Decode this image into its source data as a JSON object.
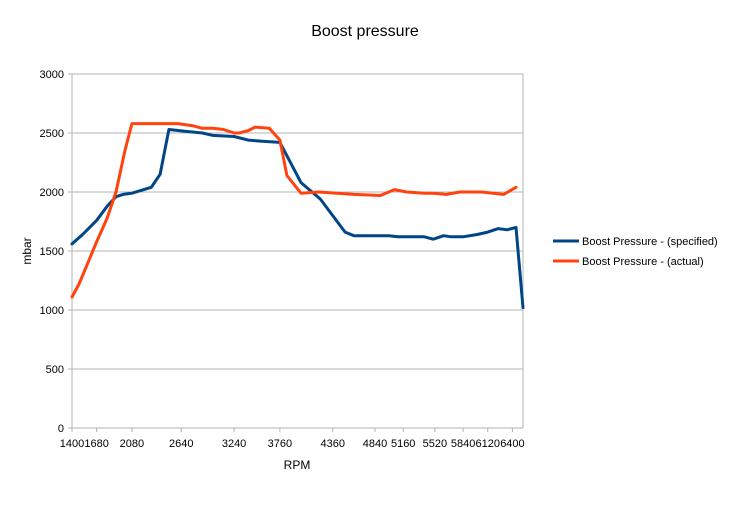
{
  "chart_data": {
    "type": "line",
    "title": "Boost pressure",
    "xlabel": "RPM",
    "ylabel": "mbar",
    "ylim": [
      0,
      3000
    ],
    "yticks": [
      0,
      500,
      1000,
      1500,
      2000,
      2500,
      3000
    ],
    "xlim": [
      1400,
      6520
    ],
    "xticks": [
      1400,
      1680,
      2080,
      2640,
      3240,
      3760,
      4360,
      4840,
      5160,
      5520,
      5840,
      6120,
      6400
    ],
    "grid": "horizontal",
    "legend_position": "right",
    "series": [
      {
        "name": "Boost Pressure - (specified)",
        "color": "#004586",
        "points": [
          [
            1400,
            1560
          ],
          [
            1520,
            1640
          ],
          [
            1680,
            1760
          ],
          [
            1800,
            1880
          ],
          [
            1900,
            1960
          ],
          [
            1980,
            1980
          ],
          [
            2080,
            1990
          ],
          [
            2300,
            2040
          ],
          [
            2400,
            2150
          ],
          [
            2500,
            2530
          ],
          [
            2680,
            2515
          ],
          [
            2880,
            2500
          ],
          [
            3000,
            2480
          ],
          [
            3240,
            2470
          ],
          [
            3400,
            2440
          ],
          [
            3560,
            2430
          ],
          [
            3760,
            2420
          ],
          [
            4000,
            2080
          ],
          [
            4220,
            1940
          ],
          [
            4500,
            1660
          ],
          [
            4600,
            1630
          ],
          [
            4840,
            1630
          ],
          [
            5000,
            1630
          ],
          [
            5100,
            1620
          ],
          [
            5400,
            1620
          ],
          [
            5500,
            1600
          ],
          [
            5620,
            1630
          ],
          [
            5700,
            1620
          ],
          [
            5840,
            1620
          ],
          [
            6000,
            1640
          ],
          [
            6120,
            1660
          ],
          [
            6240,
            1690
          ],
          [
            6340,
            1680
          ],
          [
            6440,
            1700
          ],
          [
            6520,
            1020
          ]
        ]
      },
      {
        "name": "Boost Pressure - (actual)",
        "color": "#ff420e",
        "points": [
          [
            1400,
            1110
          ],
          [
            1480,
            1220
          ],
          [
            1580,
            1400
          ],
          [
            1680,
            1580
          ],
          [
            1800,
            1780
          ],
          [
            1900,
            2000
          ],
          [
            2000,
            2350
          ],
          [
            2080,
            2580
          ],
          [
            2300,
            2580
          ],
          [
            2600,
            2580
          ],
          [
            2780,
            2560
          ],
          [
            2880,
            2540
          ],
          [
            3000,
            2540
          ],
          [
            3120,
            2530
          ],
          [
            3240,
            2500
          ],
          [
            3300,
            2500
          ],
          [
            3400,
            2520
          ],
          [
            3480,
            2550
          ],
          [
            3640,
            2540
          ],
          [
            3760,
            2440
          ],
          [
            3840,
            2140
          ],
          [
            4000,
            1990
          ],
          [
            4200,
            2000
          ],
          [
            4600,
            1980
          ],
          [
            4900,
            1970
          ],
          [
            5060,
            2020
          ],
          [
            5200,
            2000
          ],
          [
            5400,
            1990
          ],
          [
            5500,
            1990
          ],
          [
            5650,
            1980
          ],
          [
            5800,
            2000
          ],
          [
            6050,
            2000
          ],
          [
            6300,
            1980
          ],
          [
            6440,
            2040
          ]
        ]
      }
    ]
  }
}
